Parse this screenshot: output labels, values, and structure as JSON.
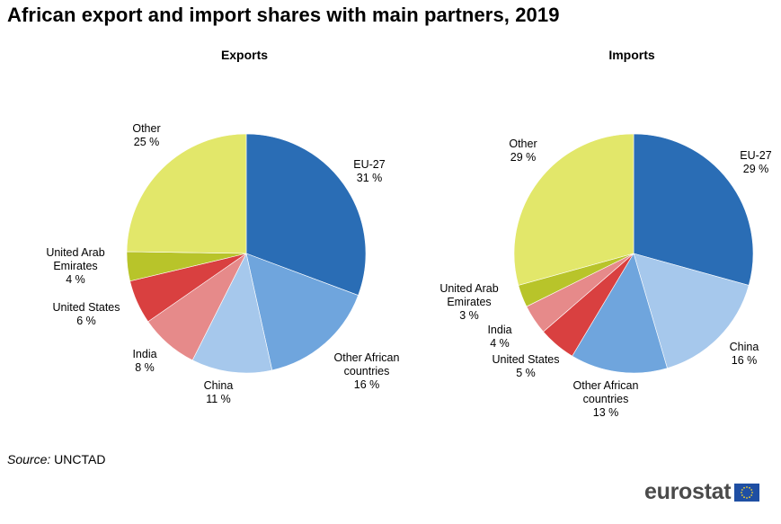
{
  "title": "African export and import shares with main partners, 2019",
  "source_label": "Source:",
  "source_value": "UNCTAD",
  "brand": "eurostat",
  "chart_data": [
    {
      "type": "pie",
      "title": "Exports",
      "slices": [
        {
          "name": "EU-27",
          "value": 31,
          "label_lines": [
            "EU-27",
            "31 %"
          ],
          "color": "#2a6db5"
        },
        {
          "name": "Other African countries",
          "value": 16,
          "label_lines": [
            "Other African",
            "countries",
            "16 %"
          ],
          "color": "#6fa5dd"
        },
        {
          "name": "China",
          "value": 11,
          "label_lines": [
            "China",
            "11 %"
          ],
          "color": "#a6c8ec"
        },
        {
          "name": "India",
          "value": 8,
          "label_lines": [
            "India",
            "8 %"
          ],
          "color": "#e68a8a"
        },
        {
          "name": "United States",
          "value": 6,
          "label_lines": [
            "United States",
            "6 %"
          ],
          "color": "#d94040"
        },
        {
          "name": "United Arab Emirates",
          "value": 4,
          "label_lines": [
            "United Arab",
            "Emirates",
            "4 %"
          ],
          "color": "#b8c42a"
        },
        {
          "name": "Other",
          "value": 25,
          "label_lines": [
            "Other",
            "25 %"
          ],
          "color": "#e2e76a"
        }
      ]
    },
    {
      "type": "pie",
      "title": "Imports",
      "slices": [
        {
          "name": "EU-27",
          "value": 29,
          "label_lines": [
            "EU-27",
            "29 %"
          ],
          "color": "#2a6db5"
        },
        {
          "name": "China",
          "value": 16,
          "label_lines": [
            "China",
            "16 %"
          ],
          "color": "#a6c8ec"
        },
        {
          "name": "Other African countries",
          "value": 13,
          "label_lines": [
            "Other African",
            "countries",
            "13 %"
          ],
          "color": "#6fa5dd"
        },
        {
          "name": "United States",
          "value": 5,
          "label_lines": [
            "United States",
            "5 %"
          ],
          "color": "#d94040"
        },
        {
          "name": "India",
          "value": 4,
          "label_lines": [
            "India",
            "4 %"
          ],
          "color": "#e68a8a"
        },
        {
          "name": "United Arab Emirates",
          "value": 3,
          "label_lines": [
            "United Arab",
            "Emirates",
            "3 %"
          ],
          "color": "#b8c42a"
        },
        {
          "name": "Other",
          "value": 29,
          "label_lines": [
            "Other",
            "29 %"
          ],
          "color": "#e2e76a"
        }
      ]
    }
  ]
}
